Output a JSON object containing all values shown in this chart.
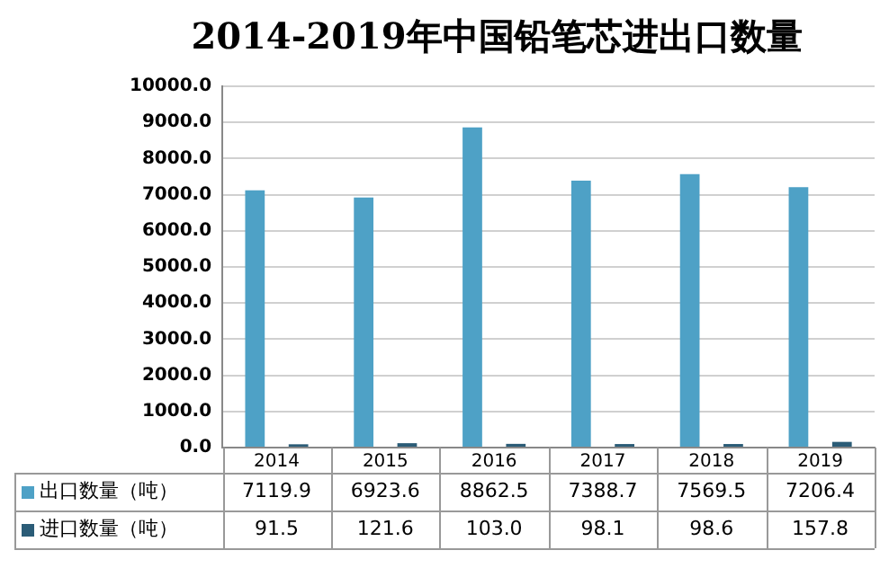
{
  "chart_data": {
    "type": "bar",
    "title": "2014-2019年中国铅笔芯进出口数量",
    "categories": [
      "2014",
      "2015",
      "2016",
      "2017",
      "2018",
      "2019"
    ],
    "series": [
      {
        "name": "出口数量（吨）",
        "color": "#4ea1c6",
        "values": [
          7119.9,
          6923.6,
          8862.5,
          7388.7,
          7569.5,
          7206.4
        ],
        "value_labels": [
          "7119.9",
          "6923.6",
          "8862.5",
          "7388.7",
          "7569.5",
          "7206.4"
        ]
      },
      {
        "name": "进口数量（吨）",
        "color": "#2b5c77",
        "values": [
          91.5,
          121.6,
          103.0,
          98.1,
          98.6,
          157.8
        ],
        "value_labels": [
          "91.5",
          "121.6",
          "103.0",
          "98.1",
          "98.6",
          "157.8"
        ]
      }
    ],
    "ylim": [
      0,
      10000
    ],
    "yticks": [
      {
        "value": 0,
        "label": "0.0"
      },
      {
        "value": 1000,
        "label": "1000.0"
      },
      {
        "value": 2000,
        "label": "2000.0"
      },
      {
        "value": 3000,
        "label": "3000.0"
      },
      {
        "value": 4000,
        "label": "4000.0"
      },
      {
        "value": 5000,
        "label": "5000.0"
      },
      {
        "value": 6000,
        "label": "6000.0"
      },
      {
        "value": 7000,
        "label": "7000.0"
      },
      {
        "value": 8000,
        "label": "8000.0"
      },
      {
        "value": 9000,
        "label": "9000.0"
      },
      {
        "value": 10000,
        "label": "10000.0"
      }
    ],
    "grid": "y",
    "legend": "bottom"
  }
}
